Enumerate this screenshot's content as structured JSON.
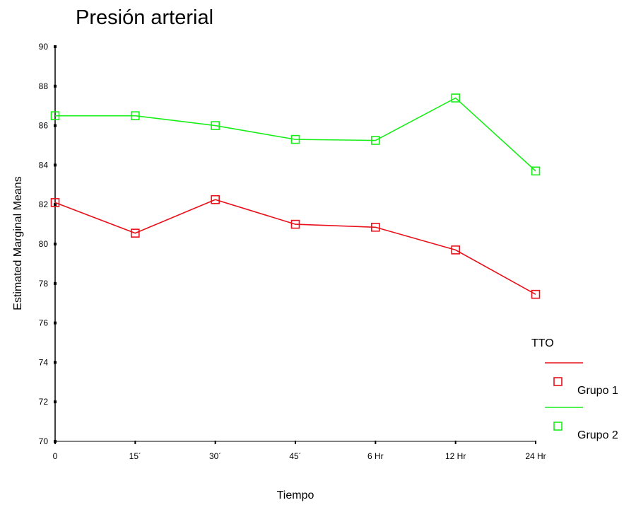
{
  "chart_data": {
    "type": "line",
    "title": "Presión arterial",
    "xlabel": "Tiempo",
    "ylabel": "Estimated Marginal Means",
    "categories": [
      "0",
      "15´",
      "30´",
      "45´",
      "6 Hr",
      "12 Hr",
      "24 Hr"
    ],
    "y_ticks": [
      "70",
      "72",
      "74",
      "76",
      "78",
      "80",
      "82",
      "84",
      "86",
      "88",
      "90"
    ],
    "ylim": [
      70,
      90
    ],
    "grid": false,
    "legend_title": "TTO",
    "legend_position": "right",
    "series": [
      {
        "name": "Grupo 1",
        "color": "#e8101a",
        "marker": "open-square",
        "values": [
          82.1,
          80.55,
          82.25,
          81.0,
          80.85,
          79.7,
          77.45
        ]
      },
      {
        "name": "Grupo 2",
        "color": "#18ee18",
        "marker": "open-square",
        "values": [
          86.5,
          86.5,
          86.0,
          85.3,
          85.25,
          87.4,
          83.7
        ]
      }
    ]
  }
}
